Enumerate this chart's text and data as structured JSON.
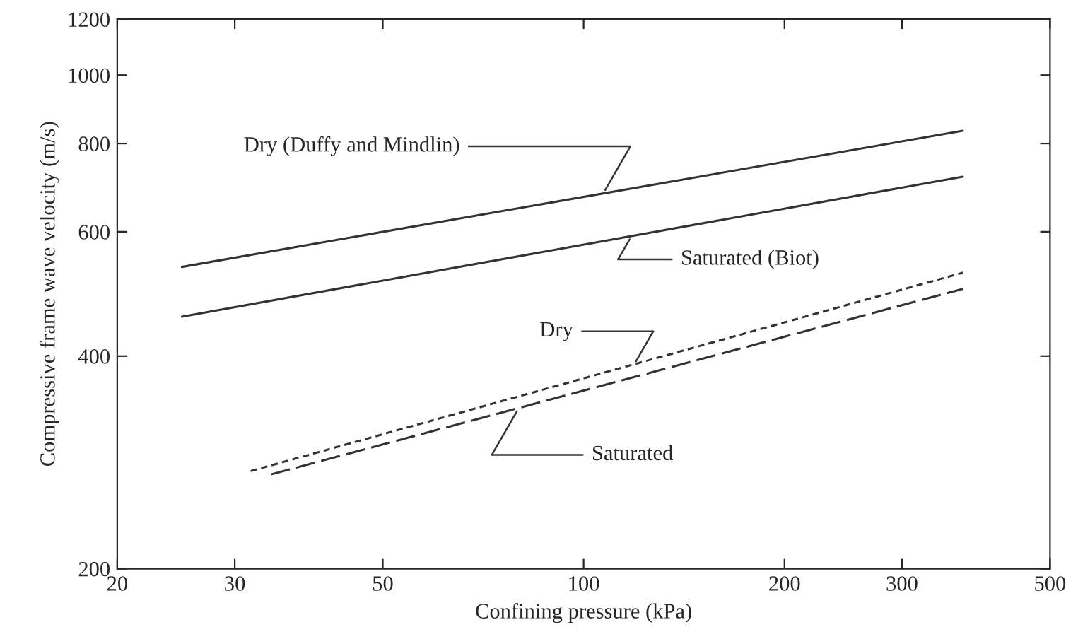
{
  "chart_data": {
    "type": "line",
    "xlabel": "Confining pressure (kPa)",
    "ylabel": "Compressive frame wave velocity (m/s)",
    "log": "xy",
    "xlim": [
      20,
      500
    ],
    "ylim": [
      200,
      1200
    ],
    "xticks": [
      20,
      30,
      50,
      100,
      200,
      300,
      500
    ],
    "yticks": [
      200,
      400,
      600,
      800,
      1000,
      1200
    ],
    "grid": false,
    "legend": false,
    "marker": "none",
    "series": [
      {
        "color": "#333333",
        "line_style": "solid",
        "x": [
          25,
          370
        ],
        "values": [
          535,
          834
        ]
      },
      {
        "color": "#333333",
        "line_style": "solid",
        "x": [
          25,
          370
        ],
        "values": [
          455,
          718
        ]
      },
      {
        "color": "#333333",
        "line_style": "dotted",
        "x": [
          31.7,
          370
        ],
        "values": [
          275,
          525
        ]
      },
      {
        "color": "#333333",
        "line_style": "dashed",
        "x": [
          34,
          370
        ],
        "values": [
          272,
          498
        ]
      }
    ],
    "annotations": [
      {
        "text": "Dry (Duffy and Mindlin)",
        "x": 107,
        "y": 680
      },
      {
        "text": "Saturated (Biot)",
        "x": 118,
        "y": 592
      },
      {
        "text": "Dry",
        "x": 119,
        "y": 389
      },
      {
        "text": "Saturated",
        "x": 80,
        "y": 338
      }
    ]
  }
}
